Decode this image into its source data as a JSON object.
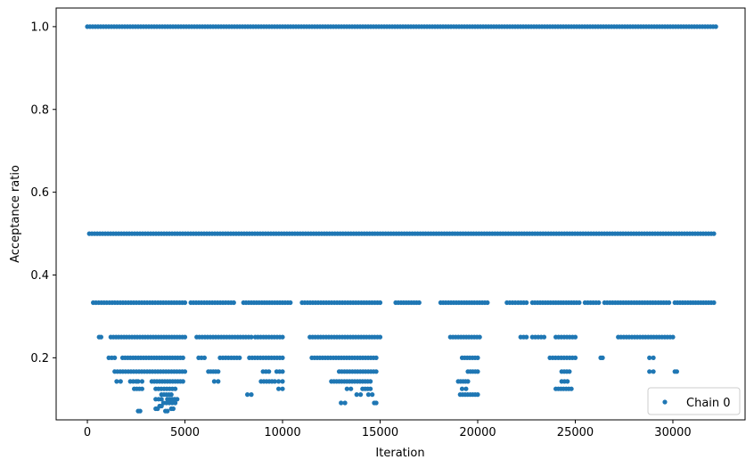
{
  "chart_data": {
    "type": "scatter",
    "title": "",
    "xlabel": "Iteration",
    "ylabel": "Acceptance ratio",
    "xlim": [
      -1600,
      33700
    ],
    "ylim": [
      0.05,
      1.045
    ],
    "xticks": [
      0,
      5000,
      10000,
      15000,
      20000,
      25000,
      30000
    ],
    "xtick_labels": [
      "0",
      "5000",
      "10000",
      "15000",
      "20000",
      "25000",
      "30000"
    ],
    "yticks": [
      0.2,
      0.4,
      0.6,
      0.8,
      1.0
    ],
    "ytick_labels": [
      "0.2",
      "0.4",
      "0.6",
      "0.8",
      "1.0"
    ],
    "grid": false,
    "legend": "lower-right",
    "series_color": "#1f77b4",
    "series": [
      {
        "name": "Chain 0",
        "marker": "point",
        "bands": [
          {
            "y": 1.0,
            "segments": [
              [
                0,
                32200
              ]
            ]
          },
          {
            "y": 0.5,
            "segments": [
              [
                100,
                32100
              ]
            ]
          },
          {
            "y": 0.3333,
            "segments": [
              [
                300,
                5000
              ],
              [
                5300,
                7500
              ],
              [
                8000,
                10400
              ],
              [
                11000,
                15000
              ],
              [
                15800,
                17000
              ],
              [
                18100,
                20500
              ],
              [
                21500,
                22500
              ],
              [
                22800,
                25200
              ],
              [
                25500,
                26200
              ],
              [
                26500,
                29800
              ],
              [
                30100,
                32100
              ]
            ]
          },
          {
            "y": 0.25,
            "segments": [
              [
                600,
                700
              ],
              [
                1200,
                5000
              ],
              [
                5600,
                8400
              ],
              [
                8600,
                10000
              ],
              [
                11400,
                15000
              ],
              [
                18600,
                20100
              ],
              [
                22200,
                22500
              ],
              [
                22800,
                23400
              ],
              [
                24000,
                25000
              ],
              [
                27200,
                30000
              ]
            ]
          },
          {
            "y": 0.2,
            "segments": [
              [
                1100,
                1400
              ],
              [
                1800,
                4900
              ],
              [
                5700,
                6000
              ],
              [
                6800,
                7800
              ],
              [
                8300,
                10000
              ],
              [
                11500,
                14800
              ],
              [
                19200,
                20000
              ],
              [
                23700,
                25000
              ],
              [
                26300,
                26400
              ],
              [
                28800,
                29000
              ]
            ]
          },
          {
            "y": 0.1667,
            "segments": [
              [
                1400,
                5000
              ],
              [
                6200,
                6700
              ],
              [
                9000,
                9300
              ],
              [
                9700,
                10000
              ],
              [
                12900,
                14800
              ],
              [
                19500,
                20000
              ],
              [
                24300,
                24700
              ],
              [
                28800,
                29000
              ],
              [
                30100,
                30200
              ]
            ]
          },
          {
            "y": 0.1429,
            "segments": [
              [
                1500,
                1700
              ],
              [
                2200,
                2500
              ],
              [
                2600,
                2800
              ],
              [
                3300,
                4900
              ],
              [
                6500,
                6700
              ],
              [
                8900,
                9600
              ],
              [
                9800,
                10000
              ],
              [
                12500,
                14500
              ],
              [
                19000,
                19500
              ],
              [
                24300,
                24600
              ]
            ]
          },
          {
            "y": 0.125,
            "segments": [
              [
                2400,
                2800
              ],
              [
                3500,
                4500
              ],
              [
                9800,
                10000
              ],
              [
                13300,
                13500
              ],
              [
                14100,
                14500
              ],
              [
                19200,
                19400
              ],
              [
                24000,
                24800
              ]
            ]
          },
          {
            "y": 0.1111,
            "segments": [
              [
                3800,
                4300
              ],
              [
                8200,
                8400
              ],
              [
                13800,
                14000
              ],
              [
                14400,
                14600
              ],
              [
                19100,
                20000
              ]
            ]
          },
          {
            "y": 0.1,
            "segments": [
              [
                3500,
                3800
              ],
              [
                4100,
                4600
              ]
            ]
          },
          {
            "y": 0.0909,
            "segments": [
              [
                3900,
                4500
              ],
              [
                13000,
                13200
              ],
              [
                14700,
                14800
              ]
            ]
          },
          {
            "y": 0.0833,
            "segments": [
              [
                3700,
                3800
              ]
            ]
          },
          {
            "y": 0.0769,
            "segments": [
              [
                3500,
                3600
              ],
              [
                4300,
                4400
              ]
            ]
          },
          {
            "y": 0.0714,
            "segments": [
              [
                2600,
                2700
              ],
              [
                4000,
                4100
              ]
            ]
          }
        ]
      }
    ]
  }
}
